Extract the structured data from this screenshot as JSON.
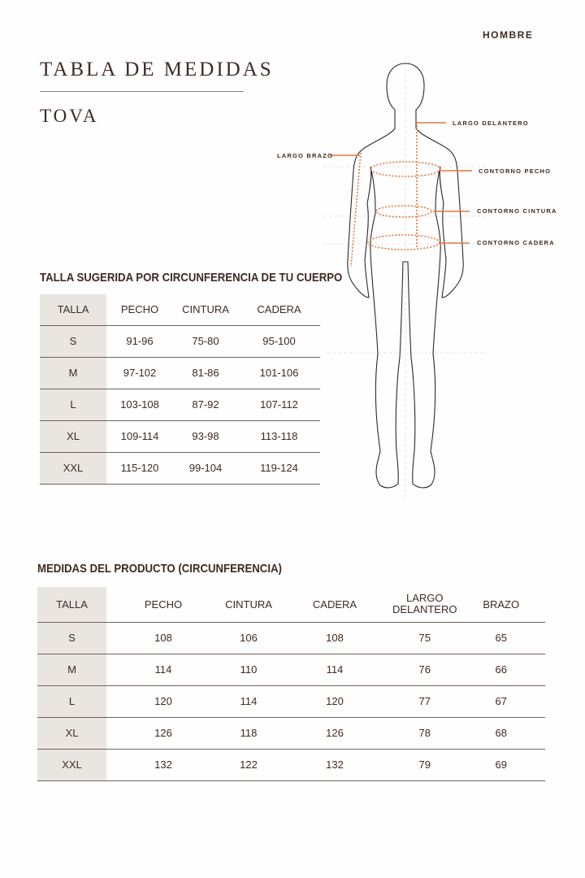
{
  "header": {
    "gender": "HOMBRE",
    "title": "TABLA DE MEDIDAS",
    "product": "TOVA"
  },
  "figure": {
    "accent": "#e8773f",
    "labels": {
      "largo_delantero": "LARGO DELANTERO",
      "largo_brazo": "LARGO BRAZO",
      "contorno_pecho": "CONTORNO PECHO",
      "contorno_cintura": "CONTORNO CINTURA",
      "contorno_cadera": "CONTORNO CADERA"
    }
  },
  "body_table": {
    "title": "TALLA SUGERIDA POR CIRCUNFERENCIA DE TU CUERPO",
    "headers": [
      "TALLA",
      "PECHO",
      "CINTURA",
      "CADERA"
    ],
    "rows": [
      [
        "S",
        "91-96",
        "75-80",
        "95-100"
      ],
      [
        "M",
        "97-102",
        "81-86",
        "101-106"
      ],
      [
        "L",
        "103-108",
        "87-92",
        "107-112"
      ],
      [
        "XL",
        "109-114",
        "93-98",
        "113-118"
      ],
      [
        "XXL",
        "115-120",
        "99-104",
        "119-124"
      ]
    ]
  },
  "product_table": {
    "title": "MEDIDAS DEL PRODUCTO (CIRCUNFERENCIA)",
    "headers": [
      "TALLA",
      "PECHO",
      "CINTURA",
      "CADERA",
      "LARGO\nDELANTERO",
      "BRAZO"
    ],
    "rows": [
      [
        "S",
        "108",
        "106",
        "108",
        "75",
        "65"
      ],
      [
        "M",
        "114",
        "110",
        "114",
        "76",
        "66"
      ],
      [
        "L",
        "120",
        "114",
        "120",
        "77",
        "67"
      ],
      [
        "XL",
        "126",
        "118",
        "126",
        "78",
        "68"
      ],
      [
        "XXL",
        "132",
        "122",
        "132",
        "79",
        "69"
      ]
    ]
  }
}
